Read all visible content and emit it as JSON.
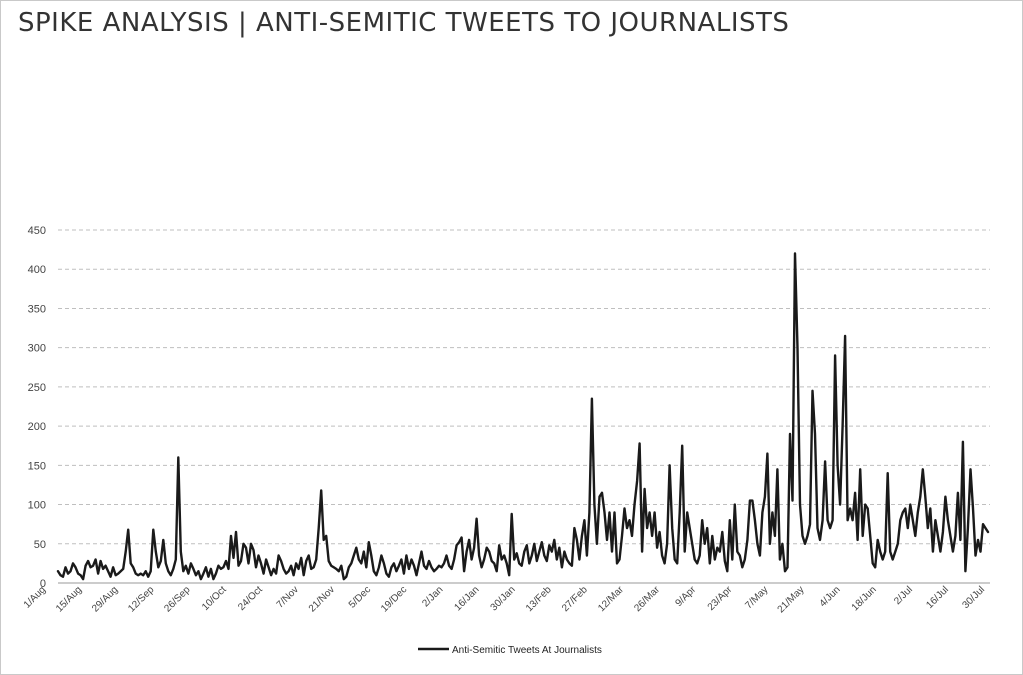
{
  "page": {
    "title": "SPIKE ANALYSIS | ANTI-SEMITIC TWEETS TO JOURNALISTS"
  },
  "colors": {
    "line": "#1a1a1a",
    "grid": "#bfbfbf",
    "axis": "#9a9a9a",
    "text": "#333333"
  },
  "chart_data": {
    "type": "line",
    "title": "",
    "xlabel": "",
    "ylabel": "",
    "ylim": [
      0,
      450
    ],
    "yticks": [
      0,
      50,
      100,
      150,
      200,
      250,
      300,
      350,
      400,
      450
    ],
    "grid": "horizontal dashed",
    "legend_position": "bottom",
    "x_start": "1/Aug",
    "x_end": "30/Jul",
    "xtick_labels": [
      "1/Aug",
      "15/Aug",
      "29/Aug",
      "12/Sep",
      "26/Sep",
      "10/Oct",
      "24/Oct",
      "7/Nov",
      "21/Nov",
      "5/Dec",
      "19/Dec",
      "2/Jan",
      "16/Jan",
      "30/Jan",
      "13/Feb",
      "27/Feb",
      "12/Mar",
      "26/Mar",
      "9/Apr",
      "23/Apr",
      "7/May",
      "21/May",
      "4/Jun",
      "18/Jun",
      "2/Jul",
      "16/Jul",
      "30/Jul"
    ],
    "series": [
      {
        "name": "Anti-Semitic Tweets At Journalists",
        "values": [
          15,
          10,
          8,
          20,
          12,
          15,
          25,
          20,
          12,
          10,
          5,
          22,
          28,
          20,
          22,
          30,
          12,
          28,
          18,
          22,
          15,
          8,
          20,
          10,
          12,
          15,
          18,
          40,
          68,
          25,
          20,
          12,
          10,
          12,
          10,
          15,
          8,
          15,
          68,
          40,
          20,
          28,
          55,
          25,
          15,
          10,
          18,
          30,
          160,
          40,
          15,
          22,
          12,
          25,
          18,
          10,
          15,
          5,
          12,
          20,
          8,
          18,
          5,
          12,
          22,
          18,
          20,
          28,
          18,
          60,
          32,
          65,
          22,
          28,
          50,
          45,
          25,
          50,
          42,
          20,
          35,
          25,
          12,
          30,
          20,
          10,
          18,
          12,
          35,
          28,
          18,
          12,
          15,
          22,
          10,
          25,
          18,
          32,
          10,
          28,
          35,
          18,
          20,
          30,
          70,
          118,
          55,
          60,
          28,
          22,
          20,
          18,
          15,
          22,
          5,
          8,
          20,
          25,
          35,
          45,
          30,
          25,
          40,
          20,
          52,
          35,
          15,
          10,
          20,
          35,
          25,
          12,
          8,
          20,
          25,
          15,
          22,
          30,
          12,
          35,
          18,
          30,
          22,
          10,
          25,
          40,
          22,
          18,
          28,
          20,
          15,
          18,
          22,
          20,
          25,
          35,
          22,
          18,
          30,
          48,
          52,
          58,
          15,
          40,
          55,
          30,
          45,
          82,
          35,
          20,
          30,
          45,
          40,
          28,
          25,
          15,
          48,
          30,
          35,
          25,
          10,
          88,
          30,
          38,
          25,
          22,
          40,
          48,
          25,
          35,
          50,
          28,
          40,
          52,
          35,
          28,
          48,
          40,
          55,
          30,
          45,
          20,
          40,
          30,
          25,
          22,
          70,
          55,
          30,
          60,
          80,
          35,
          90,
          235,
          100,
          50,
          110,
          115,
          90,
          55,
          90,
          40,
          90,
          25,
          30,
          60,
          95,
          70,
          80,
          60,
          100,
          130,
          178,
          40,
          120,
          70,
          90,
          60,
          90,
          45,
          65,
          35,
          25,
          50,
          150,
          70,
          30,
          25,
          90,
          175,
          40,
          90,
          70,
          50,
          30,
          25,
          35,
          80,
          50,
          70,
          25,
          60,
          30,
          45,
          40,
          65,
          28,
          15,
          80,
          30,
          100,
          40,
          35,
          20,
          30,
          55,
          105,
          105,
          80,
          50,
          35,
          90,
          110,
          165,
          50,
          90,
          60,
          145,
          30,
          50,
          15,
          20,
          190,
          105,
          420,
          300,
          100,
          60,
          50,
          60,
          75,
          245,
          190,
          70,
          55,
          80,
          155,
          80,
          70,
          80,
          290,
          150,
          100,
          200,
          315,
          80,
          95,
          80,
          115,
          55,
          145,
          60,
          100,
          95,
          60,
          25,
          20,
          55,
          40,
          30,
          40,
          140,
          40,
          30,
          40,
          50,
          80,
          90,
          95,
          70,
          100,
          80,
          60,
          90,
          110,
          145,
          110,
          70,
          95,
          40,
          80,
          60,
          40,
          65,
          110,
          80,
          60,
          40,
          60,
          115,
          55,
          180,
          15,
          70,
          145,
          95,
          35,
          55,
          40,
          75,
          70,
          65
        ]
      }
    ]
  }
}
